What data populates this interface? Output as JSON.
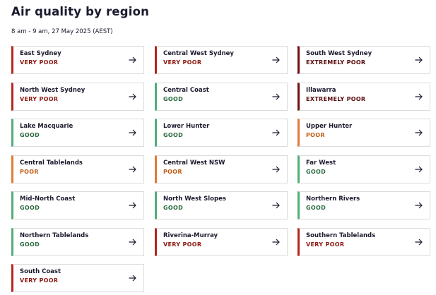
{
  "header": {
    "title": "Air quality by region",
    "subtitle": "8 am - 9 am, 27 May 2025 (AEST)"
  },
  "regions": [
    {
      "name": "East Sydney",
      "status": "VERY POOR",
      "color": "#b3261e",
      "text_color": "#8e1a14"
    },
    {
      "name": "Central West Sydney",
      "status": "VERY POOR",
      "color": "#b3261e",
      "text_color": "#8e1a14"
    },
    {
      "name": "South West Sydney",
      "status": "EXTREMELY POOR",
      "color": "#6e0f12",
      "text_color": "#5a0c0e"
    },
    {
      "name": "North West Sydney",
      "status": "VERY POOR",
      "color": "#b3261e",
      "text_color": "#8e1a14"
    },
    {
      "name": "Central Coast",
      "status": "GOOD",
      "color": "#4fae78",
      "text_color": "#2a6a3f"
    },
    {
      "name": "Illawarra",
      "status": "EXTREMELY POOR",
      "color": "#6e0f12",
      "text_color": "#5a0c0e"
    },
    {
      "name": "Lake Macquarie",
      "status": "GOOD",
      "color": "#4fae78",
      "text_color": "#2a6a3f"
    },
    {
      "name": "Lower Hunter",
      "status": "GOOD",
      "color": "#4fae78",
      "text_color": "#2a6a3f"
    },
    {
      "name": "Upper Hunter",
      "status": "POOR",
      "color": "#e07b35",
      "text_color": "#c25f16"
    },
    {
      "name": "Central Tablelands",
      "status": "POOR",
      "color": "#e07b35",
      "text_color": "#c25f16"
    },
    {
      "name": "Central West NSW",
      "status": "POOR",
      "color": "#e07b35",
      "text_color": "#c25f16"
    },
    {
      "name": "Far West",
      "status": "GOOD",
      "color": "#4fae78",
      "text_color": "#2a6a3f"
    },
    {
      "name": "Mid-North Coast",
      "status": "GOOD",
      "color": "#4fae78",
      "text_color": "#2a6a3f"
    },
    {
      "name": "North West Slopes",
      "status": "GOOD",
      "color": "#4fae78",
      "text_color": "#2a6a3f"
    },
    {
      "name": "Northern Rivers",
      "status": "GOOD",
      "color": "#4fae78",
      "text_color": "#2a6a3f"
    },
    {
      "name": "Northern Tablelands",
      "status": "GOOD",
      "color": "#4fae78",
      "text_color": "#2a6a3f"
    },
    {
      "name": "Riverina-Murray",
      "status": "VERY POOR",
      "color": "#b3261e",
      "text_color": "#8e1a14"
    },
    {
      "name": "Southern Tablelands",
      "status": "VERY POOR",
      "color": "#b3261e",
      "text_color": "#8e1a14"
    },
    {
      "name": "South Coast",
      "status": "VERY POOR",
      "color": "#b3261e",
      "text_color": "#8e1a14"
    }
  ]
}
